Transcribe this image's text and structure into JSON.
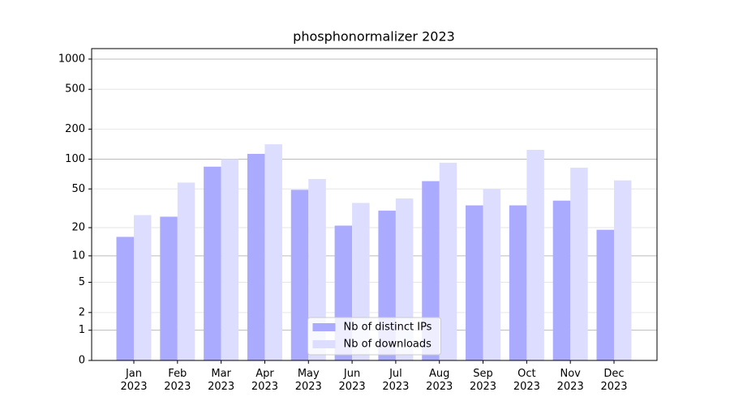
{
  "chart_data": {
    "type": "bar",
    "title": "phosphonormalizer 2023",
    "scale": "log1p",
    "categories": [
      [
        "Jan",
        "2023"
      ],
      [
        "Feb",
        "2023"
      ],
      [
        "Mar",
        "2023"
      ],
      [
        "Apr",
        "2023"
      ],
      [
        "May",
        "2023"
      ],
      [
        "Jun",
        "2023"
      ],
      [
        "Jul",
        "2023"
      ],
      [
        "Aug",
        "2023"
      ],
      [
        "Sep",
        "2023"
      ],
      [
        "Oct",
        "2023"
      ],
      [
        "Nov",
        "2023"
      ],
      [
        "Dec",
        "2023"
      ]
    ],
    "series": [
      {
        "name": "Nb of distinct IPs",
        "color": "#aaaaff",
        "values": [
          16,
          26,
          84,
          113,
          49,
          21,
          30,
          60,
          34,
          34,
          38,
          19
        ]
      },
      {
        "name": "Nb of downloads",
        "color": "#ddddff",
        "values": [
          27,
          58,
          100,
          141,
          63,
          36,
          40,
          92,
          50,
          124,
          82,
          61
        ]
      }
    ],
    "ylim": [
      0,
      1272
    ],
    "yticks": [
      0,
      1,
      2,
      5,
      10,
      20,
      50,
      100,
      200,
      500,
      1000
    ],
    "grid": true,
    "legend": "lower center"
  }
}
